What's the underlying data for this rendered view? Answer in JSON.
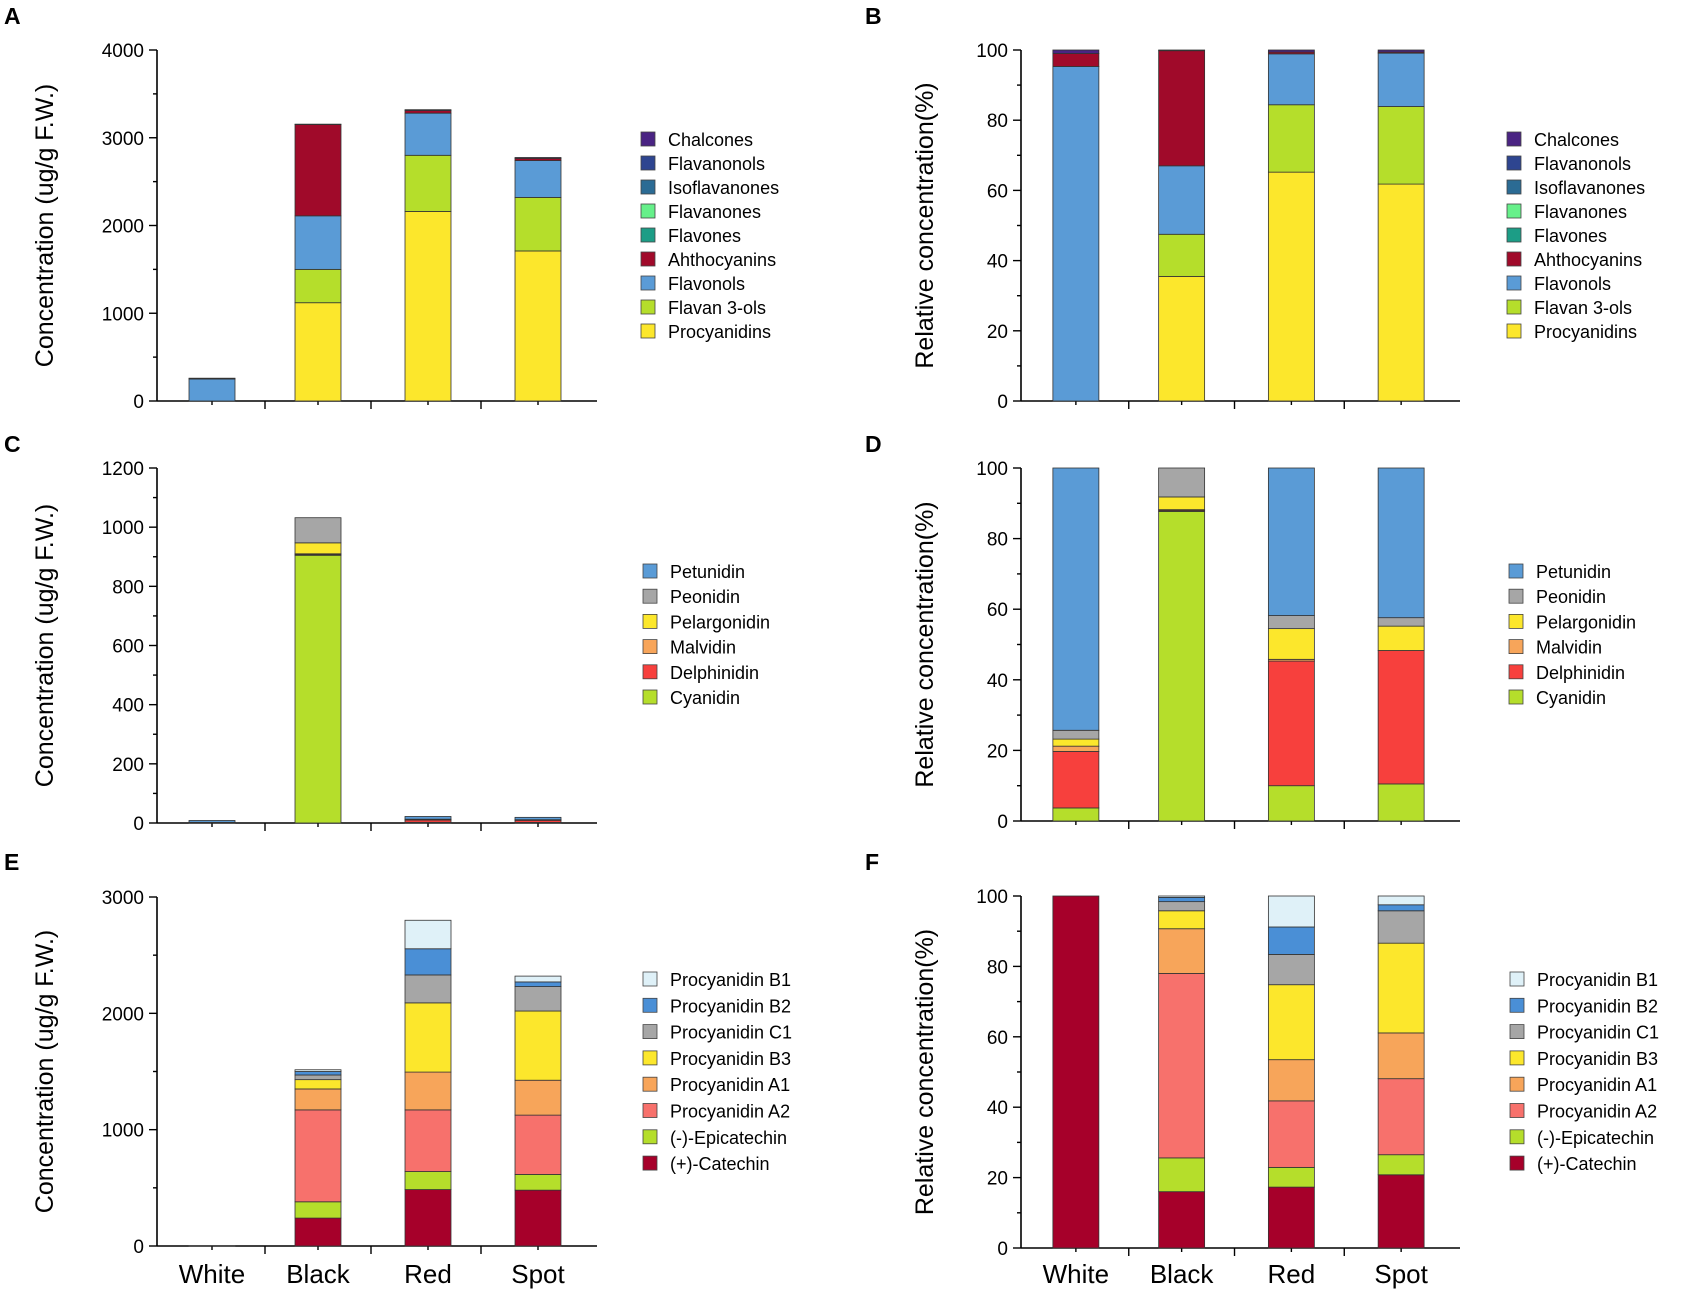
{
  "categories": [
    "White",
    "Black",
    "Red",
    "Spot"
  ],
  "colors": {
    "Chalcones": "#4a2483",
    "Flavanonols": "#2e4590",
    "Isoflavanones": "#2b6b94",
    "Flavanones": "#66f08a",
    "Flavones": "#1c9d86",
    "Ahthocyanins": "#a00a2a",
    "Flavonols": "#5a9bd6",
    "Flavan 3-ols": "#b5de2b",
    "Procyanidins": "#fce72c",
    "Petunidin": "#5a9bd6",
    "Peonidin": "#a6a6a6",
    "Pelargonidin": "#fce72c",
    "Malvidin": "#f7a55a",
    "Delphinidin": "#f7403d",
    "Cyanidin": "#b5de2b",
    "Procyanidin B1": "#dff1f8",
    "Procyanidin B2": "#4a8fd6",
    "Procyanidin C1": "#a6a6a6",
    "Procyanidin B3": "#fce72c",
    "Procyanidin A1": "#f7a55a",
    "Procyanidin A2": "#f7716c",
    "(-)-Epicatechin": "#b5de2b",
    "(+)-Catechin": "#a6002a"
  },
  "chart_data": [
    {
      "id": "A",
      "panel_label": "A",
      "type": "bar",
      "stacked": true,
      "ylabel": "Concentration (ug/g F.W.)",
      "ylim": [
        0,
        4000
      ],
      "yticks": [
        0,
        1000,
        2000,
        3000,
        4000
      ],
      "yticklabels": [
        "0",
        "1000",
        "2000",
        "3000",
        "4000"
      ],
      "legend": [
        "Chalcones",
        "Flavanonols",
        "Isoflavanones",
        "Flavanones",
        "Flavones",
        "Ahthocyanins",
        "Flavonols",
        "Flavan 3-ols",
        "Procyanidins"
      ],
      "series": [
        {
          "name": "Procyanidins",
          "values": [
            0,
            1120,
            2160,
            1710
          ]
        },
        {
          "name": "Flavan 3-ols",
          "values": [
            0,
            380,
            640,
            610
          ]
        },
        {
          "name": "Flavonols",
          "values": [
            250,
            610,
            480,
            420
          ]
        },
        {
          "name": "Ahthocyanins",
          "values": [
            5,
            1040,
            30,
            25
          ]
        },
        {
          "name": "Flavones",
          "values": [
            0,
            0,
            0,
            0
          ]
        },
        {
          "name": "Flavanones",
          "values": [
            0,
            0,
            0,
            0
          ]
        },
        {
          "name": "Isoflavanones",
          "values": [
            0,
            0,
            0,
            0
          ]
        },
        {
          "name": "Flavanonols",
          "values": [
            0,
            0,
            0,
            0
          ]
        },
        {
          "name": "Chalcones",
          "values": [
            5,
            5,
            10,
            10
          ]
        }
      ]
    },
    {
      "id": "B",
      "panel_label": "B",
      "type": "bar",
      "stacked": true,
      "ylabel": "Relative concentration(%)",
      "ylim": [
        0,
        100
      ],
      "yticks": [
        0,
        20,
        40,
        60,
        80,
        100
      ],
      "yticklabels": [
        "0",
        "20",
        "40",
        "60",
        "80",
        "100"
      ],
      "legend": [
        "Chalcones",
        "Flavanonols",
        "Isoflavanones",
        "Flavanones",
        "Flavones",
        "Ahthocyanins",
        "Flavonols",
        "Flavan 3-ols",
        "Procyanidins"
      ],
      "series": [
        {
          "name": "Procyanidins",
          "values": [
            0,
            35.5,
            65.2,
            61.8
          ]
        },
        {
          "name": "Flavan 3-ols",
          "values": [
            0,
            12,
            19.2,
            22.1
          ]
        },
        {
          "name": "Flavonols",
          "values": [
            95.3,
            19.5,
            14.5,
            15.2
          ]
        },
        {
          "name": "Ahthocyanins",
          "values": [
            3.7,
            32.8,
            0.5,
            0.3
          ]
        },
        {
          "name": "Flavones",
          "values": [
            0,
            0,
            0,
            0
          ]
        },
        {
          "name": "Flavanones",
          "values": [
            0,
            0,
            0,
            0
          ]
        },
        {
          "name": "Isoflavanones",
          "values": [
            0,
            0,
            0,
            0
          ]
        },
        {
          "name": "Flavanonols",
          "values": [
            0,
            0,
            0,
            0
          ]
        },
        {
          "name": "Chalcones",
          "values": [
            1,
            0.2,
            0.6,
            0.6
          ]
        }
      ]
    },
    {
      "id": "C",
      "panel_label": "C",
      "type": "bar",
      "stacked": true,
      "ylabel": "Concentration (ug/g F.W.)",
      "ylim": [
        0,
        1200
      ],
      "yticks": [
        0,
        200,
        400,
        600,
        800,
        1000,
        1200
      ],
      "yticklabels": [
        "0",
        "200",
        "400",
        "600",
        "800",
        "1000",
        "1200"
      ],
      "legend": [
        "Petunidin",
        "Peonidin",
        "Pelargonidin",
        "Malvidin",
        "Delphinidin",
        "Cyanidin"
      ],
      "series": [
        {
          "name": "Cyanidin",
          "values": [
            0.3,
            905,
            2.2,
            2
          ]
        },
        {
          "name": "Delphinidin",
          "values": [
            1.4,
            3,
            7.8,
            7.3
          ]
        },
        {
          "name": "Malvidin",
          "values": [
            0.1,
            2,
            0.1,
            0.1
          ]
        },
        {
          "name": "Pelargonidin",
          "values": [
            0.2,
            37,
            2,
            1.3
          ]
        },
        {
          "name": "Peonidin",
          "values": [
            0.2,
            85,
            0.8,
            0.4
          ]
        },
        {
          "name": "Petunidin",
          "values": [
            6.3,
            0,
            9.2,
            8
          ]
        }
      ]
    },
    {
      "id": "D",
      "panel_label": "D",
      "type": "bar",
      "stacked": true,
      "ylabel": "Relative concentration(%)",
      "ylim": [
        0,
        100
      ],
      "yticks": [
        0,
        20,
        40,
        60,
        80,
        100
      ],
      "yticklabels": [
        "0",
        "20",
        "40",
        "60",
        "80",
        "100"
      ],
      "legend": [
        "Petunidin",
        "Peonidin",
        "Pelargonidin",
        "Malvidin",
        "Delphinidin",
        "Cyanidin"
      ],
      "series": [
        {
          "name": "Cyanidin",
          "values": [
            3.7,
            87.7,
            10,
            10.5
          ]
        },
        {
          "name": "Delphinidin",
          "values": [
            16,
            0.3,
            35.3,
            37.8
          ]
        },
        {
          "name": "Malvidin",
          "values": [
            1.5,
            0.2,
            0.5,
            0
          ]
        },
        {
          "name": "Pelargonidin",
          "values": [
            2,
            3.6,
            8.7,
            6.9
          ]
        },
        {
          "name": "Peonidin",
          "values": [
            2.5,
            8.2,
            3.7,
            2.4
          ]
        },
        {
          "name": "Petunidin",
          "values": [
            74.3,
            0,
            41.8,
            42.4
          ]
        }
      ]
    },
    {
      "id": "E",
      "panel_label": "E",
      "type": "bar",
      "stacked": true,
      "ylabel": "Concentration (ug/g F.W.)",
      "ylim": [
        0,
        3000
      ],
      "yticks": [
        0,
        1000,
        2000,
        3000
      ],
      "yticklabels": [
        "0",
        "1000",
        "2000",
        "3000"
      ],
      "legend": [
        "Procyanidin B1",
        "Procyanidin B2",
        "Procyanidin C1",
        "Procyanidin B3",
        "Procyanidin A1",
        "Procyanidin A2",
        "(-)-Epicatechin",
        "(+)-Catechin"
      ],
      "series": [
        {
          "name": "(+)-Catechin",
          "values": [
            2,
            240,
            485,
            480
          ]
        },
        {
          "name": "(-)-Epicatechin",
          "values": [
            0,
            140,
            155,
            135
          ]
        },
        {
          "name": "Procyanidin A2",
          "values": [
            0,
            790,
            530,
            510
          ]
        },
        {
          "name": "Procyanidin A1",
          "values": [
            0,
            180,
            325,
            300
          ]
        },
        {
          "name": "Procyanidin B3",
          "values": [
            0,
            80,
            595,
            595
          ]
        },
        {
          "name": "Procyanidin C1",
          "values": [
            0,
            40,
            240,
            210
          ]
        },
        {
          "name": "Procyanidin B2",
          "values": [
            0,
            30,
            225,
            40
          ]
        },
        {
          "name": "Procyanidin B1",
          "values": [
            0,
            15,
            245,
            50
          ]
        }
      ]
    },
    {
      "id": "F",
      "panel_label": "F",
      "type": "bar",
      "stacked": true,
      "ylabel": "Relative concentration(%)",
      "ylim": [
        0,
        100
      ],
      "yticks": [
        0,
        20,
        40,
        60,
        80,
        100
      ],
      "yticklabels": [
        "0",
        "20",
        "40",
        "60",
        "80",
        "100"
      ],
      "legend": [
        "Procyanidin B1",
        "Procyanidin B2",
        "Procyanidin C1",
        "Procyanidin B3",
        "Procyanidin A1",
        "Procyanidin A2",
        "(-)-Epicatechin",
        "(+)-Catechin"
      ],
      "series": [
        {
          "name": "(+)-Catechin",
          "values": [
            100,
            16,
            17.3,
            20.8
          ]
        },
        {
          "name": "(-)-Epicatechin",
          "values": [
            0,
            9.6,
            5.6,
            5.7
          ]
        },
        {
          "name": "Procyanidin A2",
          "values": [
            0,
            52.4,
            18.9,
            21.6
          ]
        },
        {
          "name": "Procyanidin A1",
          "values": [
            0,
            12.7,
            11.7,
            13
          ]
        },
        {
          "name": "Procyanidin B3",
          "values": [
            0,
            5.1,
            21.3,
            25.5
          ]
        },
        {
          "name": "Procyanidin C1",
          "values": [
            0,
            2.6,
            8.6,
            9.2
          ]
        },
        {
          "name": "Procyanidin B2",
          "values": [
            0,
            1.2,
            7.8,
            1.7
          ]
        },
        {
          "name": "Procyanidin B1",
          "values": [
            0,
            0.4,
            8.8,
            2.5
          ]
        }
      ]
    }
  ]
}
